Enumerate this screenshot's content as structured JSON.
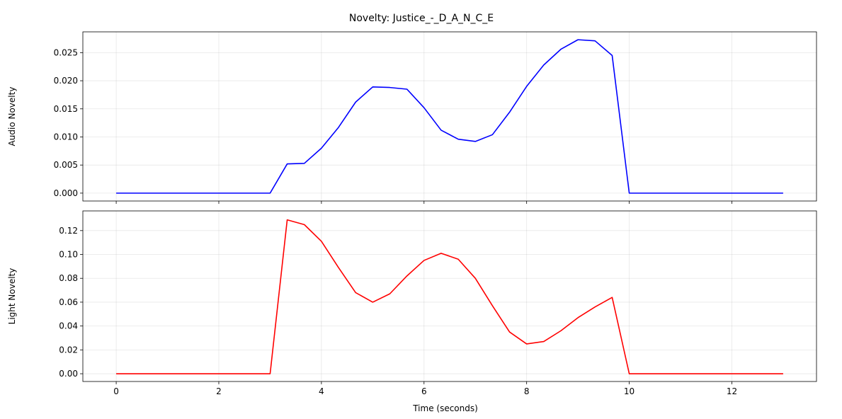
{
  "title": "Novelty: Justice_-_D_A_N_C_E",
  "chart_data": [
    {
      "type": "line",
      "ylabel": "Audio Novelty",
      "xlabel": "",
      "xlim": [
        -0.65,
        13.65
      ],
      "ylim": [
        -0.0014,
        0.0287
      ],
      "xticks": [
        0,
        2,
        4,
        6,
        8,
        10,
        12
      ],
      "show_x_tick_labels": false,
      "yticks": [
        0.0,
        0.005,
        0.01,
        0.015,
        0.02,
        0.025
      ],
      "ytick_labels": [
        "0.000",
        "0.005",
        "0.010",
        "0.015",
        "0.020",
        "0.025"
      ],
      "grid": true,
      "series": [
        {
          "color": "#0000ff",
          "x": [
            0,
            0.333,
            0.667,
            1,
            1.333,
            1.667,
            2,
            2.333,
            2.667,
            3,
            3.333,
            3.667,
            4,
            4.333,
            4.667,
            5,
            5.333,
            5.667,
            6,
            6.333,
            6.667,
            7,
            7.333,
            7.667,
            8,
            8.333,
            8.667,
            9,
            9.333,
            9.667,
            10,
            10.333,
            10.667,
            11,
            11.333,
            11.667,
            12,
            12.333,
            12.667,
            13
          ],
          "y": [
            0,
            0,
            0,
            0,
            0,
            0,
            0,
            0,
            0,
            0,
            0.0052,
            0.0053,
            0.008,
            0.0117,
            0.0162,
            0.0189,
            0.0188,
            0.0185,
            0.0152,
            0.0112,
            0.0096,
            0.0092,
            0.0104,
            0.0144,
            0.019,
            0.0228,
            0.0256,
            0.0273,
            0.0271,
            0.0245,
            0,
            0,
            0,
            0,
            0,
            0,
            0,
            0,
            0,
            0
          ]
        }
      ]
    },
    {
      "type": "line",
      "ylabel": "Light Novelty",
      "xlabel": "Time (seconds)",
      "xlim": [
        -0.65,
        13.65
      ],
      "ylim": [
        -0.0065,
        0.1365
      ],
      "xticks": [
        0,
        2,
        4,
        6,
        8,
        10,
        12
      ],
      "xtick_labels": [
        "0",
        "2",
        "4",
        "6",
        "8",
        "10",
        "12"
      ],
      "show_x_tick_labels": true,
      "yticks": [
        0.0,
        0.02,
        0.04,
        0.06,
        0.08,
        0.1,
        0.12
      ],
      "ytick_labels": [
        "0.00",
        "0.02",
        "0.04",
        "0.06",
        "0.08",
        "0.10",
        "0.12"
      ],
      "grid": true,
      "series": [
        {
          "color": "#ff0000",
          "x": [
            0,
            0.333,
            0.667,
            1,
            1.333,
            1.667,
            2,
            2.333,
            2.667,
            3,
            3.333,
            3.667,
            4,
            4.333,
            4.667,
            5,
            5.333,
            5.667,
            6,
            6.333,
            6.667,
            7,
            7.333,
            7.667,
            8,
            8.333,
            8.667,
            9,
            9.333,
            9.667,
            10,
            10.333,
            10.667,
            11,
            11.333,
            11.667,
            12,
            12.333,
            12.667,
            13
          ],
          "y": [
            0,
            0,
            0,
            0,
            0,
            0,
            0,
            0,
            0,
            0,
            0.129,
            0.125,
            0.111,
            0.089,
            0.068,
            0.06,
            0.067,
            0.082,
            0.095,
            0.101,
            0.096,
            0.08,
            0.057,
            0.035,
            0.025,
            0.027,
            0.036,
            0.047,
            0.056,
            0.064,
            0,
            0,
            0,
            0,
            0,
            0,
            0,
            0,
            0,
            0
          ]
        }
      ]
    }
  ]
}
